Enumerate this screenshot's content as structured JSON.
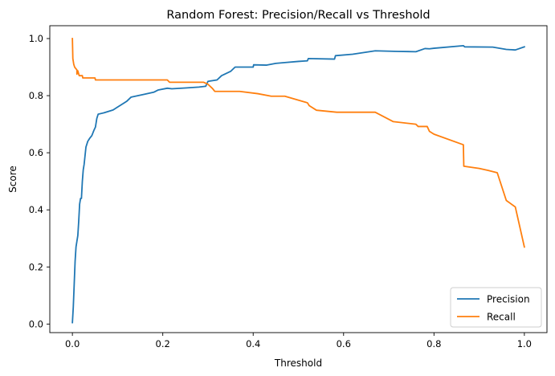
{
  "chart_data": {
    "type": "line",
    "title": "Random Forest: Precision/Recall vs Threshold",
    "xlabel": "Threshold",
    "ylabel": "Score",
    "xlim": [
      -0.05,
      1.05
    ],
    "ylim": [
      -0.03,
      1.045
    ],
    "xticks": [
      0.0,
      0.2,
      0.4,
      0.6,
      0.8,
      1.0
    ],
    "xtick_labels": [
      "0.0",
      "0.2",
      "0.4",
      "0.6",
      "0.8",
      "1.0"
    ],
    "yticks": [
      0.0,
      0.2,
      0.4,
      0.6,
      0.8,
      1.0
    ],
    "ytick_labels": [
      "0.0",
      "0.2",
      "0.4",
      "0.6",
      "0.8",
      "1.0"
    ],
    "grid": false,
    "legend_position": "lower-right",
    "series": [
      {
        "name": "Precision",
        "color": "#1f77b4",
        "points": [
          [
            0.0,
            0.005
          ],
          [
            0.002,
            0.06
          ],
          [
            0.004,
            0.14
          ],
          [
            0.006,
            0.22
          ],
          [
            0.008,
            0.27
          ],
          [
            0.01,
            0.29
          ],
          [
            0.012,
            0.31
          ],
          [
            0.014,
            0.36
          ],
          [
            0.016,
            0.42
          ],
          [
            0.018,
            0.44
          ],
          [
            0.02,
            0.44
          ],
          [
            0.022,
            0.5
          ],
          [
            0.024,
            0.54
          ],
          [
            0.026,
            0.56
          ],
          [
            0.028,
            0.59
          ],
          [
            0.03,
            0.62
          ],
          [
            0.034,
            0.64
          ],
          [
            0.038,
            0.65
          ],
          [
            0.043,
            0.66
          ],
          [
            0.048,
            0.68
          ],
          [
            0.051,
            0.69
          ],
          [
            0.054,
            0.72
          ],
          [
            0.057,
            0.735
          ],
          [
            0.07,
            0.74
          ],
          [
            0.09,
            0.75
          ],
          [
            0.1,
            0.76
          ],
          [
            0.12,
            0.78
          ],
          [
            0.13,
            0.795
          ],
          [
            0.16,
            0.805
          ],
          [
            0.18,
            0.812
          ],
          [
            0.19,
            0.82
          ],
          [
            0.21,
            0.826
          ],
          [
            0.22,
            0.824
          ],
          [
            0.25,
            0.827
          ],
          [
            0.28,
            0.83
          ],
          [
            0.295,
            0.833
          ],
          [
            0.3,
            0.85
          ],
          [
            0.32,
            0.855
          ],
          [
            0.33,
            0.87
          ],
          [
            0.35,
            0.885
          ],
          [
            0.36,
            0.9
          ],
          [
            0.4,
            0.9
          ],
          [
            0.401,
            0.908
          ],
          [
            0.43,
            0.907
          ],
          [
            0.45,
            0.913
          ],
          [
            0.47,
            0.916
          ],
          [
            0.5,
            0.92
          ],
          [
            0.52,
            0.922
          ],
          [
            0.522,
            0.93
          ],
          [
            0.58,
            0.928
          ],
          [
            0.582,
            0.94
          ],
          [
            0.62,
            0.945
          ],
          [
            0.67,
            0.957
          ],
          [
            0.72,
            0.955
          ],
          [
            0.76,
            0.954
          ],
          [
            0.78,
            0.965
          ],
          [
            0.79,
            0.964
          ],
          [
            0.8,
            0.966
          ],
          [
            0.865,
            0.975
          ],
          [
            0.868,
            0.971
          ],
          [
            0.93,
            0.97
          ],
          [
            0.96,
            0.962
          ],
          [
            0.98,
            0.96
          ],
          [
            1.0,
            0.971
          ]
        ]
      },
      {
        "name": "Recall",
        "color": "#ff7f0e",
        "points": [
          [
            0.0,
            1.0
          ],
          [
            0.001,
            0.93
          ],
          [
            0.003,
            0.91
          ],
          [
            0.005,
            0.9
          ],
          [
            0.01,
            0.89
          ],
          [
            0.01,
            0.875
          ],
          [
            0.012,
            0.887
          ],
          [
            0.015,
            0.87
          ],
          [
            0.02,
            0.87
          ],
          [
            0.022,
            0.87
          ],
          [
            0.023,
            0.862
          ],
          [
            0.05,
            0.862
          ],
          [
            0.051,
            0.855
          ],
          [
            0.21,
            0.855
          ],
          [
            0.215,
            0.847
          ],
          [
            0.29,
            0.847
          ],
          [
            0.3,
            0.84
          ],
          [
            0.31,
            0.825
          ],
          [
            0.315,
            0.815
          ],
          [
            0.37,
            0.815
          ],
          [
            0.41,
            0.807
          ],
          [
            0.44,
            0.798
          ],
          [
            0.47,
            0.798
          ],
          [
            0.52,
            0.775
          ],
          [
            0.524,
            0.765
          ],
          [
            0.54,
            0.749
          ],
          [
            0.585,
            0.742
          ],
          [
            0.67,
            0.742
          ],
          [
            0.71,
            0.709
          ],
          [
            0.76,
            0.7
          ],
          [
            0.765,
            0.692
          ],
          [
            0.785,
            0.692
          ],
          [
            0.79,
            0.675
          ],
          [
            0.8,
            0.665
          ],
          [
            0.865,
            0.628
          ],
          [
            0.866,
            0.553
          ],
          [
            0.9,
            0.545
          ],
          [
            0.92,
            0.538
          ],
          [
            0.94,
            0.53
          ],
          [
            0.96,
            0.433
          ],
          [
            0.98,
            0.41
          ],
          [
            1.0,
            0.27
          ]
        ]
      }
    ]
  }
}
